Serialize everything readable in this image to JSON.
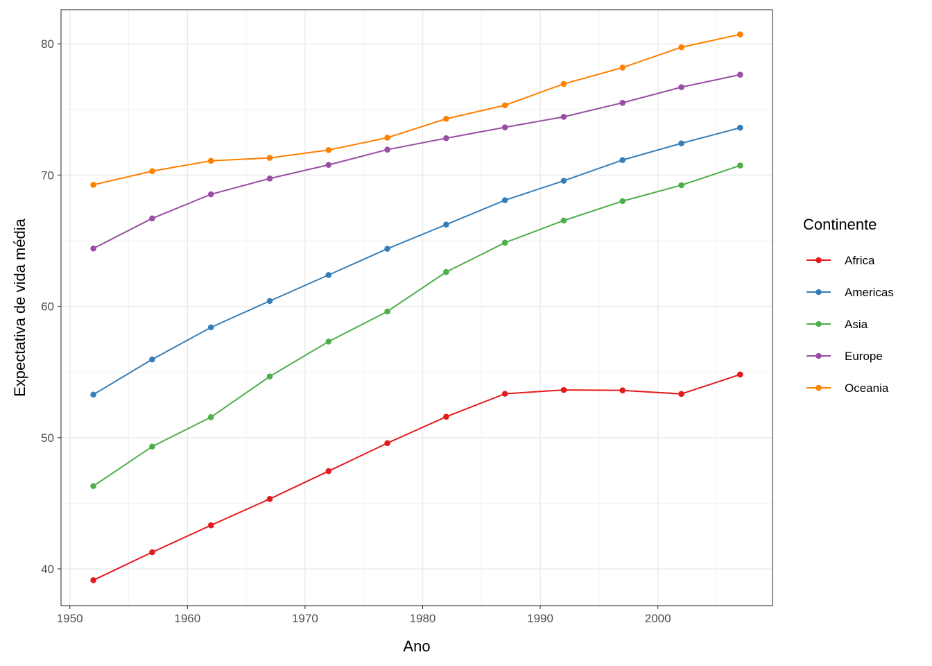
{
  "chart_data": {
    "type": "line",
    "xlabel": "Ano",
    "ylabel": "Expectativa de vida média",
    "xlim": [
      1949.25,
      2009.75
    ],
    "ylim": [
      37.2,
      82.6
    ],
    "x_ticks": [
      1950,
      1960,
      1970,
      1980,
      1990,
      2000
    ],
    "y_ticks": [
      40,
      50,
      60,
      70,
      80
    ],
    "grid": true,
    "legend": {
      "title": "Continente",
      "position": "right"
    },
    "x": [
      1952,
      1957,
      1962,
      1967,
      1972,
      1977,
      1982,
      1987,
      1992,
      1997,
      2002,
      2007
    ],
    "series": [
      {
        "name": "Africa",
        "color": "#E41A1C",
        "values": [
          39.14,
          41.27,
          43.32,
          45.33,
          47.45,
          49.58,
          51.59,
          53.34,
          53.63,
          53.6,
          53.33,
          54.81
        ]
      },
      {
        "name": "Americas",
        "color": "#377EB8",
        "values": [
          53.28,
          55.96,
          58.4,
          60.41,
          62.39,
          64.39,
          66.23,
          68.09,
          69.57,
          71.15,
          72.42,
          73.61
        ]
      },
      {
        "name": "Asia",
        "color": "#4DAF4A",
        "values": [
          46.31,
          49.32,
          51.56,
          54.66,
          57.32,
          59.61,
          62.62,
          64.85,
          66.54,
          68.02,
          69.23,
          70.73
        ]
      },
      {
        "name": "Europe",
        "color": "#984EA3",
        "values": [
          64.41,
          66.7,
          68.54,
          69.74,
          70.78,
          71.94,
          72.81,
          73.64,
          74.44,
          75.51,
          76.7,
          77.65
        ]
      },
      {
        "name": "Oceania",
        "color": "#FF7F00",
        "values": [
          69.26,
          70.3,
          71.09,
          71.31,
          71.91,
          72.85,
          74.29,
          75.32,
          76.95,
          78.19,
          79.74,
          80.72
        ]
      }
    ]
  }
}
